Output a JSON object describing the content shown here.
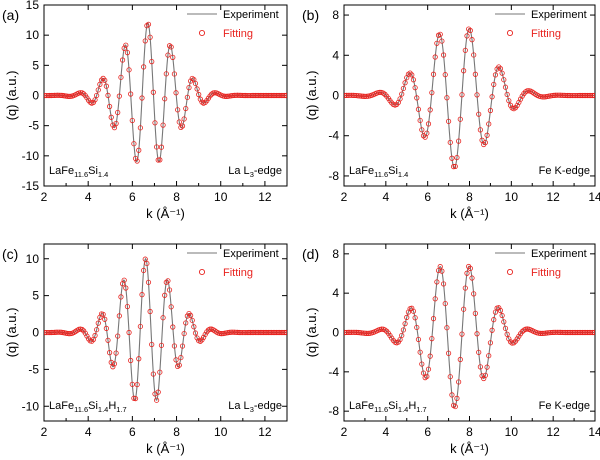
{
  "chart_data": [
    {
      "type": "line",
      "panel_label": "(a)",
      "xlabel": "k (Å⁻¹)",
      "ylabel": "(q) (a.u.)",
      "xlim": [
        2,
        13
      ],
      "ylim": [
        -15,
        15
      ],
      "xticks": [
        2,
        4,
        6,
        8,
        10,
        12
      ],
      "yticks": [
        -15,
        -10,
        -5,
        0,
        5,
        10,
        15
      ],
      "legend": {
        "placement": "top-right",
        "entries": [
          "Experiment",
          "Fitting"
        ]
      },
      "series": [
        {
          "name": "Experiment",
          "color": "#777777"
        },
        {
          "name": "Fitting",
          "color": "#e8231f"
        }
      ],
      "oscillation": {
        "center": 6.7,
        "width": 1.7,
        "amplitude": 12.0,
        "period": 1.03,
        "phase_x": 6.7
      },
      "sample": {
        "base": "LaFe",
        "s1": "11.6",
        "mid": "Si",
        "s2": "1.4",
        "extra": "",
        "s3": ""
      },
      "edge": {
        "pre": "La L",
        "sub": "3",
        "post": "-edge"
      }
    },
    {
      "type": "line",
      "panel_label": "(b)",
      "xlabel": "k (Å⁻¹)",
      "ylabel": "(q) (a.u.)",
      "xlim": [
        2,
        14
      ],
      "ylim": [
        -9,
        9
      ],
      "xticks": [
        2,
        4,
        6,
        8,
        10,
        12,
        14
      ],
      "yticks": [
        -8,
        -4,
        0,
        4,
        8
      ],
      "legend": {
        "placement": "top-right",
        "entries": [
          "Experiment",
          "Fitting"
        ]
      },
      "series": [
        {
          "name": "Experiment",
          "color": "#777777"
        },
        {
          "name": "Fitting",
          "color": "#e8231f"
        }
      ],
      "oscillation": {
        "center": 7.4,
        "width": 2.1,
        "amplitude": 7.2,
        "period": 1.45,
        "phase_x": 8.0
      },
      "sample": {
        "base": "LaFe",
        "s1": "11.6",
        "mid": "Si",
        "s2": "1.4",
        "extra": "",
        "s3": ""
      },
      "edge": {
        "pre": "Fe K-edge",
        "sub": "",
        "post": ""
      }
    },
    {
      "type": "line",
      "panel_label": "(c)",
      "xlabel": "k (Å⁻¹)",
      "ylabel": "(q) (a.u.)",
      "xlim": [
        2,
        13
      ],
      "ylim": [
        -12,
        12
      ],
      "xticks": [
        2,
        4,
        6,
        8,
        10,
        12
      ],
      "yticks": [
        -10,
        -5,
        0,
        5,
        10
      ],
      "legend": {
        "placement": "top-right",
        "entries": [
          "Experiment",
          "Fitting"
        ]
      },
      "series": [
        {
          "name": "Experiment",
          "color": "#777777"
        },
        {
          "name": "Fitting",
          "color": "#e8231f"
        }
      ],
      "oscillation": {
        "center": 6.6,
        "width": 1.7,
        "amplitude": 10.0,
        "period": 1.0,
        "phase_x": 6.6
      },
      "sample": {
        "base": "LaFe",
        "s1": "11.6",
        "mid": "Si",
        "s2": "1.4",
        "extra": "H",
        "s3": "1.7"
      },
      "edge": {
        "pre": "La L",
        "sub": "3",
        "post": "-edge"
      }
    },
    {
      "type": "line",
      "panel_label": "(d)",
      "xlabel": "k (Å⁻¹)",
      "ylabel": "(q) (a.u.)",
      "xlim": [
        2,
        14
      ],
      "ylim": [
        -9,
        9
      ],
      "xticks": [
        2,
        4,
        6,
        8,
        10,
        12,
        14
      ],
      "yticks": [
        -8,
        -4,
        0,
        4,
        8
      ],
      "legend": {
        "placement": "top-right",
        "entries": [
          "Experiment",
          "Fitting"
        ]
      },
      "series": [
        {
          "name": "Experiment",
          "color": "#777777"
        },
        {
          "name": "Fitting",
          "color": "#e8231f"
        }
      ],
      "oscillation": {
        "center": 7.3,
        "width": 2.0,
        "amplitude": 7.6,
        "period": 1.42,
        "phase_x": 8.0
      },
      "sample": {
        "base": "LaFe",
        "s1": "11.6",
        "mid": "Si",
        "s2": "1.4",
        "extra": "H",
        "s3": "1.7"
      },
      "edge": {
        "pre": "Fe K-edge",
        "sub": "",
        "post": ""
      }
    }
  ]
}
